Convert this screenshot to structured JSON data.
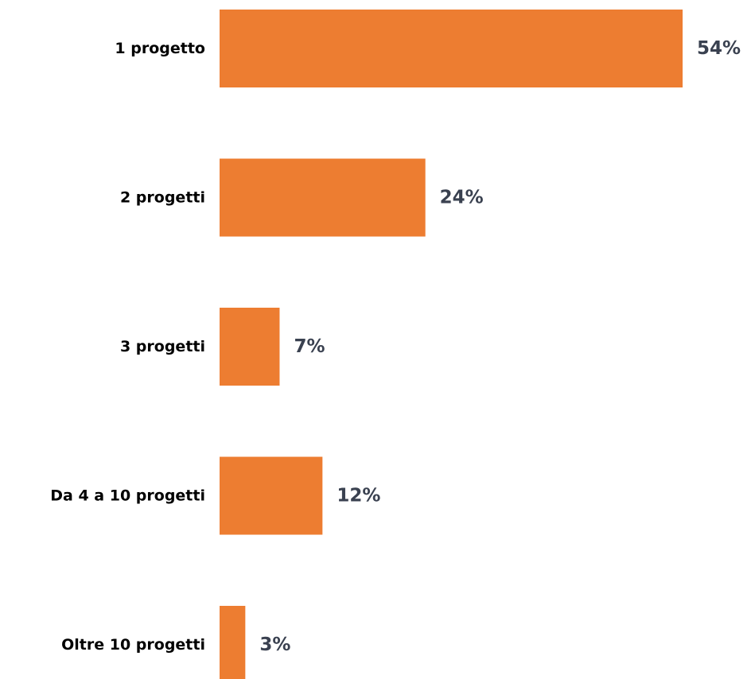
{
  "chart_data": {
    "type": "bar",
    "orientation": "horizontal",
    "categories": [
      "1 progetto",
      "2 progetti",
      "3 progetti",
      "Da 4 a 10 progetti",
      "Oltre 10 progetti"
    ],
    "values": [
      54,
      24,
      7,
      12,
      3
    ],
    "value_labels": [
      "54%",
      "24%",
      "7%",
      "12%",
      "3%"
    ],
    "unit": "%",
    "title": "",
    "xlabel": "",
    "ylabel": "",
    "grid": false,
    "legend": "none",
    "colors": {
      "bar": "#ED7D31",
      "value_text": "#3A4150",
      "category_text": "#000000"
    }
  }
}
